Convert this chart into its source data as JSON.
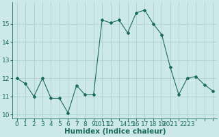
{
  "x": [
    0,
    1,
    2,
    3,
    4,
    5,
    6,
    7,
    8,
    9,
    10,
    11,
    12,
    13,
    14,
    15,
    16,
    17,
    18,
    19,
    20,
    21,
    22,
    23
  ],
  "y": [
    12.0,
    11.7,
    11.0,
    12.0,
    10.9,
    10.9,
    10.1,
    11.6,
    11.1,
    11.1,
    15.2,
    15.05,
    15.2,
    14.5,
    15.6,
    15.75,
    15.0,
    14.4,
    12.6,
    11.1,
    12.0,
    12.1,
    11.65,
    11.3
  ],
  "xlabel": "Humidex (Indice chaleur)",
  "ylim": [
    9.8,
    16.2
  ],
  "xlim": [
    -0.5,
    23.5
  ],
  "yticks": [
    10,
    11,
    12,
    13,
    14,
    15
  ],
  "xtick_positions": [
    0,
    1,
    2,
    3,
    4,
    5,
    6,
    7,
    8,
    9,
    10,
    11,
    12,
    13,
    14,
    15,
    16,
    17,
    18,
    19,
    20,
    21,
    22,
    23
  ],
  "xtick_labels": [
    "0",
    "1",
    "2",
    "3",
    "4",
    "5",
    "6",
    "7",
    "8",
    "9",
    "1011",
    "12",
    "",
    "1415",
    "16",
    "17",
    "18",
    "19",
    "2021",
    "",
    "2223",
    "",
    "",
    ""
  ],
  "line_color": "#1a6b5e",
  "marker": "D",
  "marker_size": 2,
  "bg_color": "#cce8e8",
  "grid_color": "#aacccc",
  "xlabel_fontsize": 7.5,
  "tick_fontsize": 6.5,
  "ytick_fontsize": 6.5
}
